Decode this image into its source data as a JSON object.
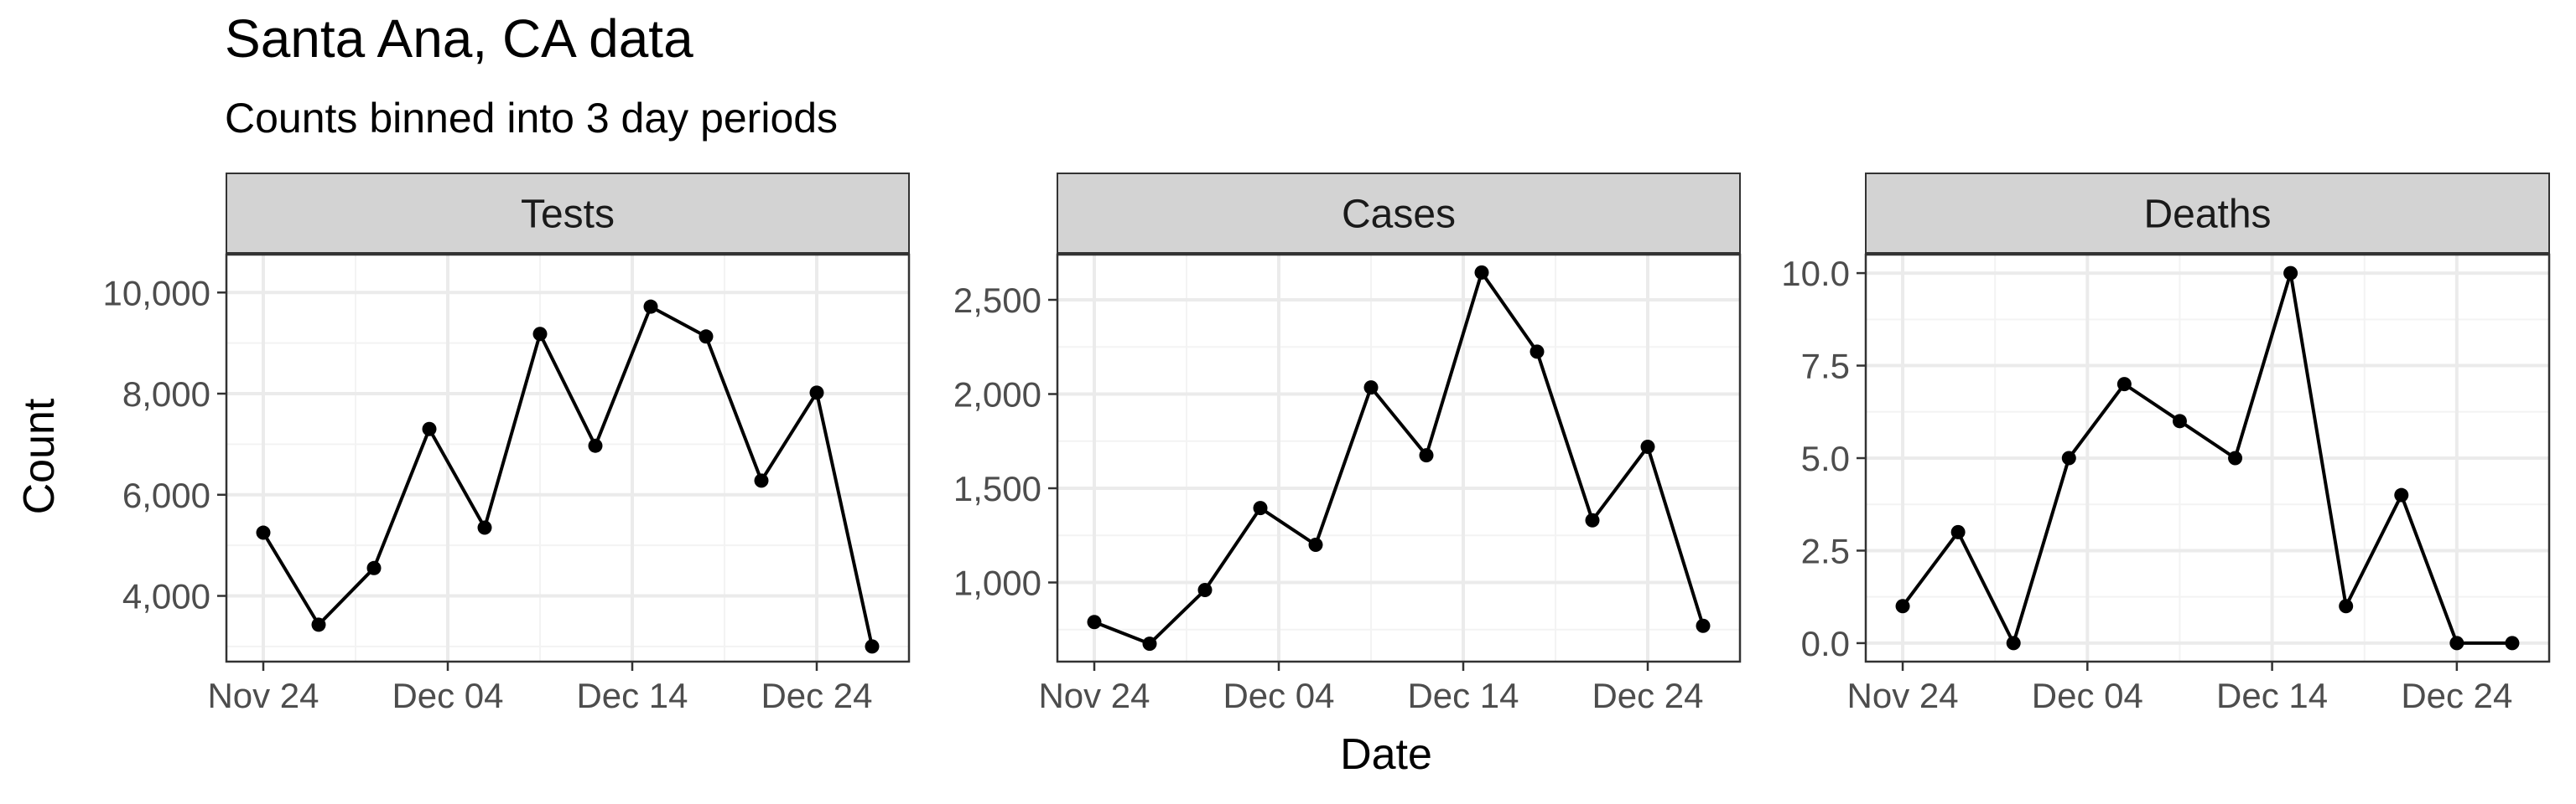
{
  "title": "Santa Ana, CA data",
  "subtitle": "Counts binned into 3 day periods",
  "x_axis_title": "Date",
  "y_axis_title": "Count",
  "colors": {
    "line": "#000000",
    "strip_fill": "#d3d3d3",
    "strip_border": "#333333",
    "grid_major": "#ebebeb",
    "grid_minor": "#f3f3f3",
    "tick_label": "#4d4d4d"
  },
  "chart_data": [
    {
      "type": "line",
      "panel": "Tests",
      "x": [
        "2020-11-24",
        "2020-11-27",
        "2020-11-30",
        "2020-12-03",
        "2020-12-06",
        "2020-12-09",
        "2020-12-12",
        "2020-12-15",
        "2020-12-18",
        "2020-12-21",
        "2020-12-24",
        "2020-12-27"
      ],
      "y": [
        5250,
        3430,
        4550,
        7300,
        5350,
        9180,
        6970,
        9720,
        9130,
        6280,
        8020,
        3000
      ],
      "x_ticks": [
        "Nov 24",
        "Dec 04",
        "Dec 14",
        "Dec 24"
      ],
      "y_ticks": [
        "4,000",
        "6,000",
        "8,000",
        "10,000"
      ],
      "xlim": [
        "2020-11-22",
        "2020-12-29"
      ],
      "ylim": [
        2700,
        10750
      ],
      "grid": true
    },
    {
      "type": "line",
      "panel": "Cases",
      "x": [
        "2020-11-24",
        "2020-11-27",
        "2020-11-30",
        "2020-12-03",
        "2020-12-06",
        "2020-12-09",
        "2020-12-12",
        "2020-12-15",
        "2020-12-18",
        "2020-12-21",
        "2020-12-24",
        "2020-12-27"
      ],
      "y": [
        790,
        675,
        960,
        1395,
        1200,
        2035,
        1675,
        2645,
        2225,
        1330,
        1720,
        770
      ],
      "x_ticks": [
        "Nov 24",
        "Dec 04",
        "Dec 14",
        "Dec 24"
      ],
      "y_ticks": [
        "1,000",
        "1,500",
        "2,000",
        "2,500"
      ],
      "xlim": [
        "2020-11-22",
        "2020-12-29"
      ],
      "ylim": [
        580,
        2740
      ],
      "grid": true
    },
    {
      "type": "line",
      "panel": "Deaths",
      "x": [
        "2020-11-24",
        "2020-11-27",
        "2020-11-30",
        "2020-12-03",
        "2020-12-06",
        "2020-12-09",
        "2020-12-12",
        "2020-12-15",
        "2020-12-18",
        "2020-12-21",
        "2020-12-24",
        "2020-12-27"
      ],
      "y": [
        1,
        3,
        0,
        5,
        7,
        6,
        5,
        10,
        1,
        4,
        0,
        0
      ],
      "x_ticks": [
        "Nov 24",
        "Dec 04",
        "Dec 14",
        "Dec 24"
      ],
      "y_ticks": [
        "0.0",
        "2.5",
        "5.0",
        "7.5",
        "10.0"
      ],
      "xlim": [
        "2020-11-22",
        "2020-12-29"
      ],
      "ylim": [
        -0.5,
        10.5
      ],
      "grid": true
    }
  ]
}
